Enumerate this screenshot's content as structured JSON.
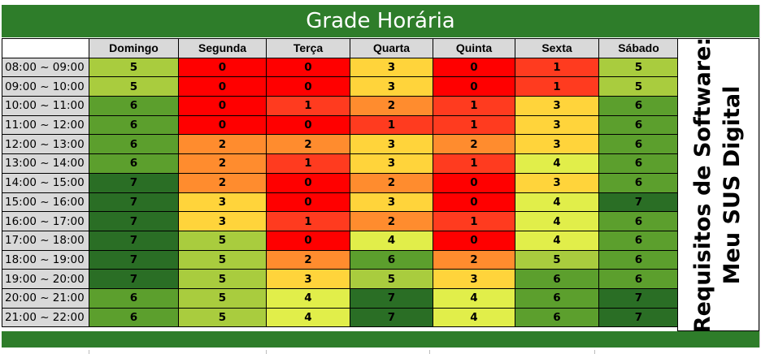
{
  "title": "Grade Horária",
  "side_label": [
    "Requisitos de Software:",
    "Meu SUS Digital"
  ],
  "colors": {
    "header_green": "#2e7d2a",
    "scale": {
      "0": "#ff0000",
      "1": "#ff3b1f",
      "2": "#ff8c2e",
      "3": "#ffd43b",
      "4": "#e1ee4a",
      "5": "#a9cc3e",
      "6": "#5c9f2d",
      "7": "#2a6e25"
    }
  },
  "days": [
    "Domingo",
    "Segunda",
    "Terça",
    "Quarta",
    "Quinta",
    "Sexta",
    "Sábado"
  ],
  "rows": [
    {
      "time": "08:00 ~ 09:00",
      "values": [
        5,
        0,
        0,
        3,
        0,
        1,
        5
      ]
    },
    {
      "time": "09:00 ~ 10:00",
      "values": [
        5,
        0,
        0,
        3,
        0,
        1,
        5
      ]
    },
    {
      "time": "10:00 ~ 11:00",
      "values": [
        6,
        0,
        1,
        2,
        1,
        3,
        6
      ]
    },
    {
      "time": "11:00 ~ 12:00",
      "values": [
        6,
        0,
        0,
        1,
        1,
        3,
        6
      ]
    },
    {
      "time": "12:00 ~ 13:00",
      "values": [
        6,
        2,
        2,
        3,
        2,
        3,
        6
      ]
    },
    {
      "time": "13:00 ~ 14:00",
      "values": [
        6,
        2,
        1,
        3,
        1,
        4,
        6
      ]
    },
    {
      "time": "14:00 ~ 15:00",
      "values": [
        7,
        2,
        0,
        2,
        0,
        3,
        6
      ]
    },
    {
      "time": "15:00 ~ 16:00",
      "values": [
        7,
        3,
        0,
        3,
        0,
        4,
        7
      ]
    },
    {
      "time": "16:00 ~ 17:00",
      "values": [
        7,
        3,
        1,
        2,
        1,
        4,
        6
      ]
    },
    {
      "time": "17:00 ~ 18:00",
      "values": [
        7,
        5,
        0,
        4,
        0,
        4,
        6
      ]
    },
    {
      "time": "18:00 ~ 19:00",
      "values": [
        7,
        5,
        2,
        6,
        2,
        5,
        6
      ]
    },
    {
      "time": "19:00 ~ 20:00",
      "values": [
        7,
        5,
        3,
        5,
        3,
        6,
        6
      ]
    },
    {
      "time": "20:00 ~ 21:00",
      "values": [
        6,
        5,
        4,
        7,
        4,
        6,
        7
      ]
    },
    {
      "time": "21:00 ~ 22:00",
      "values": [
        6,
        5,
        4,
        7,
        4,
        6,
        7
      ]
    }
  ]
}
